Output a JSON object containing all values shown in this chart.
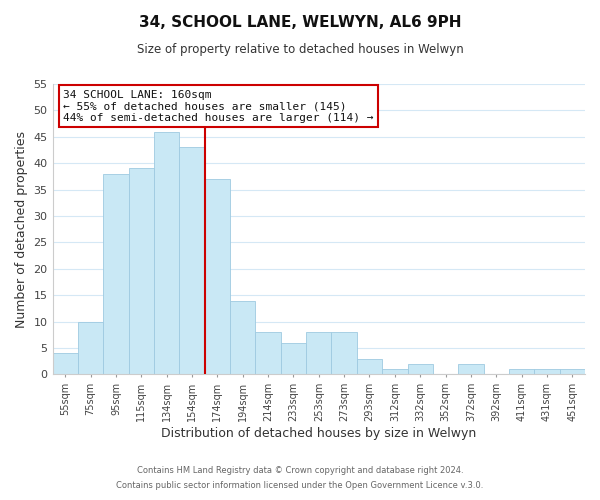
{
  "title": "34, SCHOOL LANE, WELWYN, AL6 9PH",
  "subtitle": "Size of property relative to detached houses in Welwyn",
  "xlabel": "Distribution of detached houses by size in Welwyn",
  "ylabel": "Number of detached properties",
  "bar_labels": [
    "55sqm",
    "75sqm",
    "95sqm",
    "115sqm",
    "134sqm",
    "154sqm",
    "174sqm",
    "194sqm",
    "214sqm",
    "233sqm",
    "253sqm",
    "273sqm",
    "293sqm",
    "312sqm",
    "332sqm",
    "352sqm",
    "372sqm",
    "392sqm",
    "411sqm",
    "431sqm",
    "451sqm"
  ],
  "bar_values": [
    4,
    10,
    38,
    39,
    46,
    43,
    37,
    14,
    8,
    6,
    8,
    8,
    3,
    1,
    2,
    0,
    2,
    0,
    1,
    1,
    1
  ],
  "bar_color": "#c9e8f5",
  "bar_edge_color": "#9ecae1",
  "vline_x": 5.5,
  "vline_color": "#cc0000",
  "ylim": [
    0,
    55
  ],
  "yticks": [
    0,
    5,
    10,
    15,
    20,
    25,
    30,
    35,
    40,
    45,
    50,
    55
  ],
  "annotation_title": "34 SCHOOL LANE: 160sqm",
  "annotation_line1": "← 55% of detached houses are smaller (145)",
  "annotation_line2": "44% of semi-detached houses are larger (114) →",
  "footer1": "Contains HM Land Registry data © Crown copyright and database right 2024.",
  "footer2": "Contains public sector information licensed under the Open Government Licence v.3.0.",
  "bg_color": "#ffffff",
  "grid_color": "#d5e8f5"
}
